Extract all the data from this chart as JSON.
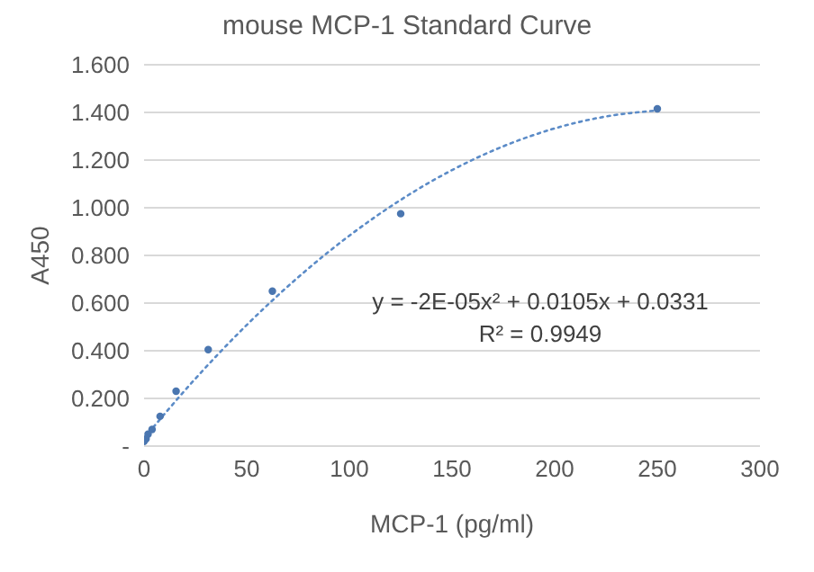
{
  "chart_data": {
    "type": "scatter",
    "title": "mouse MCP-1 Standard Curve",
    "xlabel": "MCP-1 (pg/ml)",
    "ylabel": "A450",
    "xlim": [
      0,
      300
    ],
    "xticks": [
      0,
      50,
      100,
      150,
      200,
      250,
      300
    ],
    "ylim": [
      0,
      1.6
    ],
    "yticks": [
      {
        "value": 0,
        "label": "-"
      },
      {
        "value": 0.2,
        "label": "0.200"
      },
      {
        "value": 0.4,
        "label": "0.400"
      },
      {
        "value": 0.6,
        "label": "0.600"
      },
      {
        "value": 0.8,
        "label": "0.800"
      },
      {
        "value": 1.0,
        "label": "1.000"
      },
      {
        "value": 1.2,
        "label": "1.200"
      },
      {
        "value": 1.4,
        "label": "1.400"
      },
      {
        "value": 1.6,
        "label": "1.600"
      }
    ],
    "grid": "y",
    "series": [
      {
        "color": "#4a76b0",
        "marker": "circle",
        "x": [
          250,
          125,
          62.5,
          31.25,
          15.6,
          7.8,
          3.9,
          1.95,
          0.98,
          0
        ],
        "values": [
          1.415,
          0.975,
          0.65,
          0.405,
          0.23,
          0.125,
          0.07,
          0.05,
          0.03,
          0.02
        ]
      },
      {
        "type": "line",
        "color": "#5b8bc7",
        "marker": "none",
        "line_style": "dotted",
        "x": [
          0,
          25,
          50,
          75,
          100,
          125,
          150,
          175,
          200,
          225,
          250
        ],
        "values": [
          0.033,
          0.283,
          0.508,
          0.708,
          0.883,
          1.033,
          1.158,
          1.258,
          1.333,
          1.383,
          1.408
        ]
      }
    ],
    "annotations": [
      "y = -2E-05x² + 0.0105x + 0.0331",
      "R² = 0.9949"
    ]
  }
}
